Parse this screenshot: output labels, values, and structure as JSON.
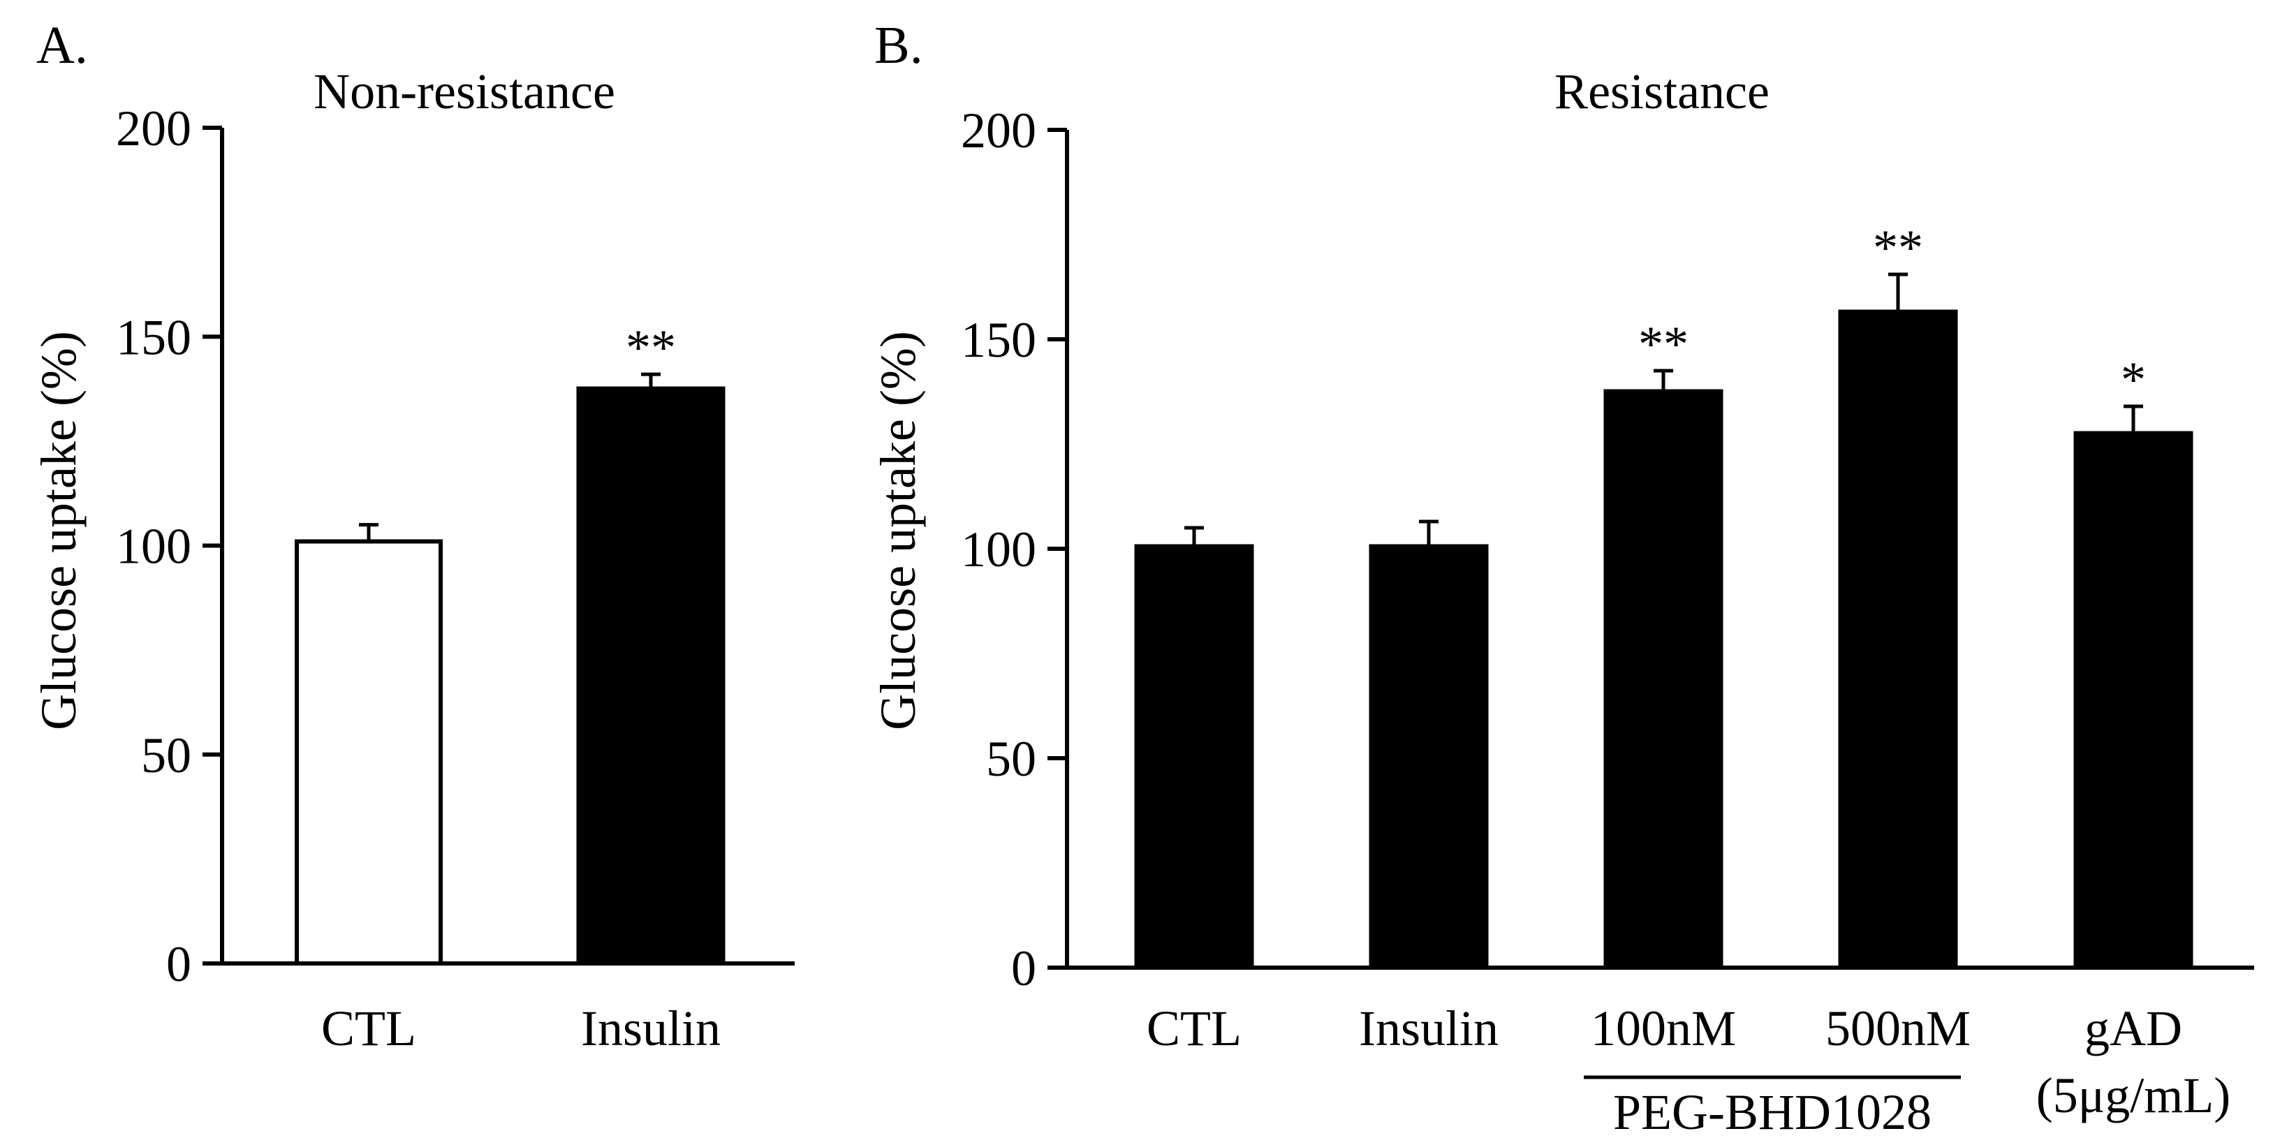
{
  "chart_data": [
    {
      "type": "bar",
      "panel": "A.",
      "title": "Non-resistance",
      "ylabel": "Glucose uptake (%)",
      "xlabel": "",
      "ylim": [
        0,
        200
      ],
      "yticks": [
        "0",
        "50",
        "100",
        "150",
        "200"
      ],
      "categories": [
        "CTL",
        "Insulin"
      ],
      "values": [
        101,
        138
      ],
      "errors": [
        4,
        3
      ],
      "fills": [
        "#ffffff",
        "#000000"
      ],
      "significance": [
        "",
        "**"
      ],
      "grid": false
    },
    {
      "type": "bar",
      "panel": "B.",
      "title": "Resistance",
      "ylabel": "Glucose uptake (%)",
      "xlabel": "",
      "ylim": [
        0,
        200
      ],
      "yticks": [
        "0",
        "50",
        "100",
        "150",
        "200"
      ],
      "categories": [
        "CTL",
        "Insulin",
        "100nM",
        "500nM",
        "gAD"
      ],
      "category_sublabels": [
        "",
        "",
        "",
        "",
        "(5μg/mL)"
      ],
      "group_label": "PEG-BHD1028",
      "values": [
        101,
        101,
        138,
        157,
        128
      ],
      "errors": [
        4,
        5.5,
        4.5,
        8.5,
        6
      ],
      "fills": [
        "#000000",
        "#000000",
        "#000000",
        "#000000",
        "#000000"
      ],
      "significance": [
        "",
        "",
        "**",
        "**",
        "*"
      ],
      "grid": false
    }
  ]
}
